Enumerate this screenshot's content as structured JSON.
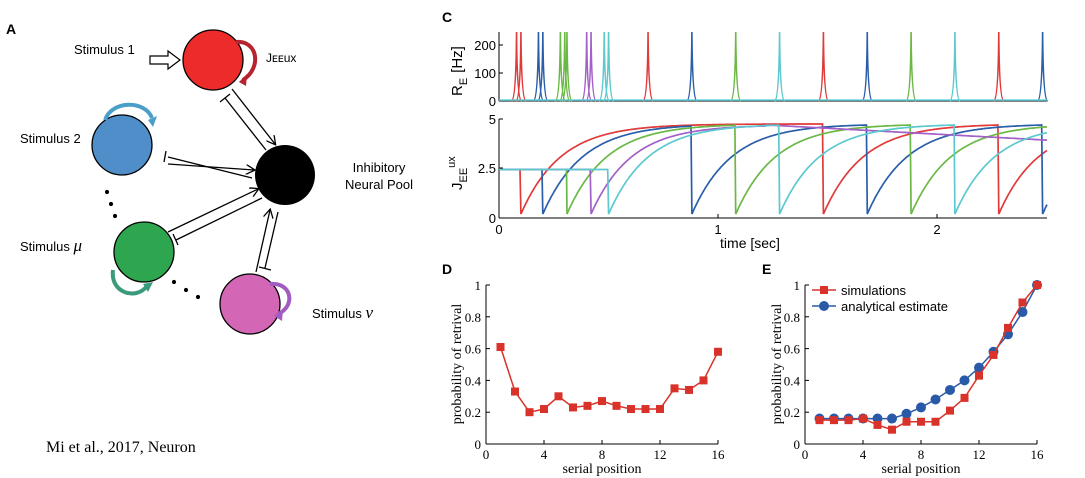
{
  "panel_a": {
    "letter": "A",
    "nodes": {
      "stimulus_1": "Stimulus 1",
      "stimulus_2": "Stimulus 2",
      "stimulus_mu_prefix": "Stimulus ",
      "stimulus_mu_symbol": "μ",
      "stimulus_nu_prefix": "Stimulus ",
      "stimulus_nu_symbol": "ν",
      "inhibitory_line1": "Inhibitory",
      "inhibitory_line2": "Neural Pool",
      "self_loop_label": "Jᴇᴇux"
    },
    "colors": {
      "stimulus_1": "#ee2b2b",
      "stimulus_2": "#4f8ec9",
      "stimulus_mu": "#2ea54f",
      "stimulus_nu": "#d466b6",
      "inhibitory": "#000000",
      "arrow_red": "#b5242f",
      "arrow_blue": "#4a9fc9",
      "arrow_green": "#3a9a7c",
      "arrow_purple": "#a05cc0"
    }
  },
  "citation": "Mi et al., 2017, Neuron",
  "panel_c": {
    "letter": "C",
    "top_ylabel_main": "R",
    "top_ylabel_sub": "E",
    "top_ylabel_unit": "[Hz]",
    "top_yticks": [
      "200",
      "100",
      "0"
    ],
    "bottom_ylabel_main": "J",
    "bottom_ylabel_sub": "EE",
    "bottom_ylabel_sup": "ux",
    "bottom_yticks": [
      "5",
      "2.5",
      "0"
    ],
    "xticks": [
      "0",
      "1",
      "2"
    ],
    "xlabel": "time [sec]"
  },
  "panel_d": {
    "letter": "D",
    "ylabel": "probability of retrival",
    "xlabel": "serial position",
    "yticks": [
      "1",
      "0.8",
      "0.6",
      "0.4",
      "0.2",
      "0"
    ],
    "xticks": [
      "0",
      "4",
      "8",
      "12",
      "16"
    ]
  },
  "panel_e": {
    "letter": "E",
    "ylabel": "probability of retrival",
    "xlabel": "serial position",
    "yticks": [
      "1",
      "0.8",
      "0.6",
      "0.4",
      "0.2",
      "0"
    ],
    "xticks": [
      "0",
      "4",
      "8",
      "12",
      "16"
    ],
    "legend_simulations": "simulations",
    "legend_analytical": "analytical estimate"
  },
  "chart_data": [
    {
      "type": "line",
      "panel": "C-top",
      "ylabel": "RE [Hz]",
      "xlim": [
        0,
        2.5
      ],
      "ylim": [
        0,
        250
      ],
      "series": [
        {
          "color": "#e03a3a",
          "spikes_x": [
            0.08,
            0.1,
            0.68,
            1.48,
            2.28
          ]
        },
        {
          "color": "#2a5ea8",
          "spikes_x": [
            0.18,
            0.2,
            0.88,
            1.68,
            2.48
          ]
        },
        {
          "color": "#6ab845",
          "spikes_x": [
            0.28,
            0.3,
            0.31,
            1.08,
            1.88
          ]
        },
        {
          "color": "#a260c8",
          "spikes_x": [
            0.4,
            0.42
          ]
        },
        {
          "color": "#5cc8cf",
          "spikes_x": [
            0.48,
            0.5,
            1.28,
            2.08
          ]
        }
      ]
    },
    {
      "type": "line",
      "panel": "C-bottom",
      "xlabel": "time [sec]",
      "ylabel": "JEEux",
      "xlim": [
        0,
        2.5
      ],
      "ylim": [
        0,
        5
      ],
      "series": [
        {
          "color": "#e03a3a",
          "reset_times": [
            0.1,
            1.48,
            2.28
          ]
        },
        {
          "color": "#2a5ea8",
          "reset_times": [
            0.2,
            0.88,
            1.68,
            2.48
          ]
        },
        {
          "color": "#6ab845",
          "reset_times": [
            0.31,
            1.08,
            1.88
          ]
        },
        {
          "color": "#a260c8",
          "reset_times": [
            0.42
          ]
        },
        {
          "color": "#5cc8cf",
          "reset_times": [
            0.5,
            1.28,
            2.08
          ]
        }
      ]
    },
    {
      "type": "line",
      "panel": "D",
      "xlabel": "serial position",
      "ylabel": "probability of retrival",
      "xlim": [
        0,
        16
      ],
      "ylim": [
        0,
        1
      ],
      "series": [
        {
          "color": "#d9322b",
          "x": [
            1,
            2,
            3,
            4,
            5,
            6,
            7,
            8,
            9,
            10,
            11,
            12,
            13,
            14,
            15,
            16
          ],
          "values": [
            0.61,
            0.33,
            0.2,
            0.22,
            0.3,
            0.23,
            0.24,
            0.27,
            0.24,
            0.22,
            0.22,
            0.22,
            0.35,
            0.34,
            0.4,
            0.58
          ]
        }
      ]
    },
    {
      "type": "line",
      "panel": "E",
      "xlabel": "serial position",
      "ylabel": "probability of retrival",
      "xlim": [
        0,
        16
      ],
      "ylim": [
        0,
        1
      ],
      "legend": "top-left",
      "series": [
        {
          "name": "simulations",
          "color": "#d9322b",
          "x": [
            1,
            2,
            3,
            4,
            5,
            6,
            7,
            8,
            9,
            10,
            11,
            12,
            13,
            14,
            15,
            16
          ],
          "values": [
            0.15,
            0.15,
            0.15,
            0.16,
            0.12,
            0.09,
            0.14,
            0.14,
            0.14,
            0.21,
            0.29,
            0.43,
            0.56,
            0.73,
            0.89,
            1.0
          ]
        },
        {
          "name": "analytical estimate",
          "color": "#2a5aa7",
          "x": [
            1,
            2,
            3,
            4,
            5,
            6,
            7,
            8,
            9,
            10,
            11,
            12,
            13,
            14,
            15,
            16
          ],
          "values": [
            0.16,
            0.16,
            0.16,
            0.16,
            0.16,
            0.16,
            0.19,
            0.23,
            0.28,
            0.34,
            0.4,
            0.48,
            0.58,
            0.69,
            0.83,
            1.0
          ]
        }
      ]
    }
  ]
}
